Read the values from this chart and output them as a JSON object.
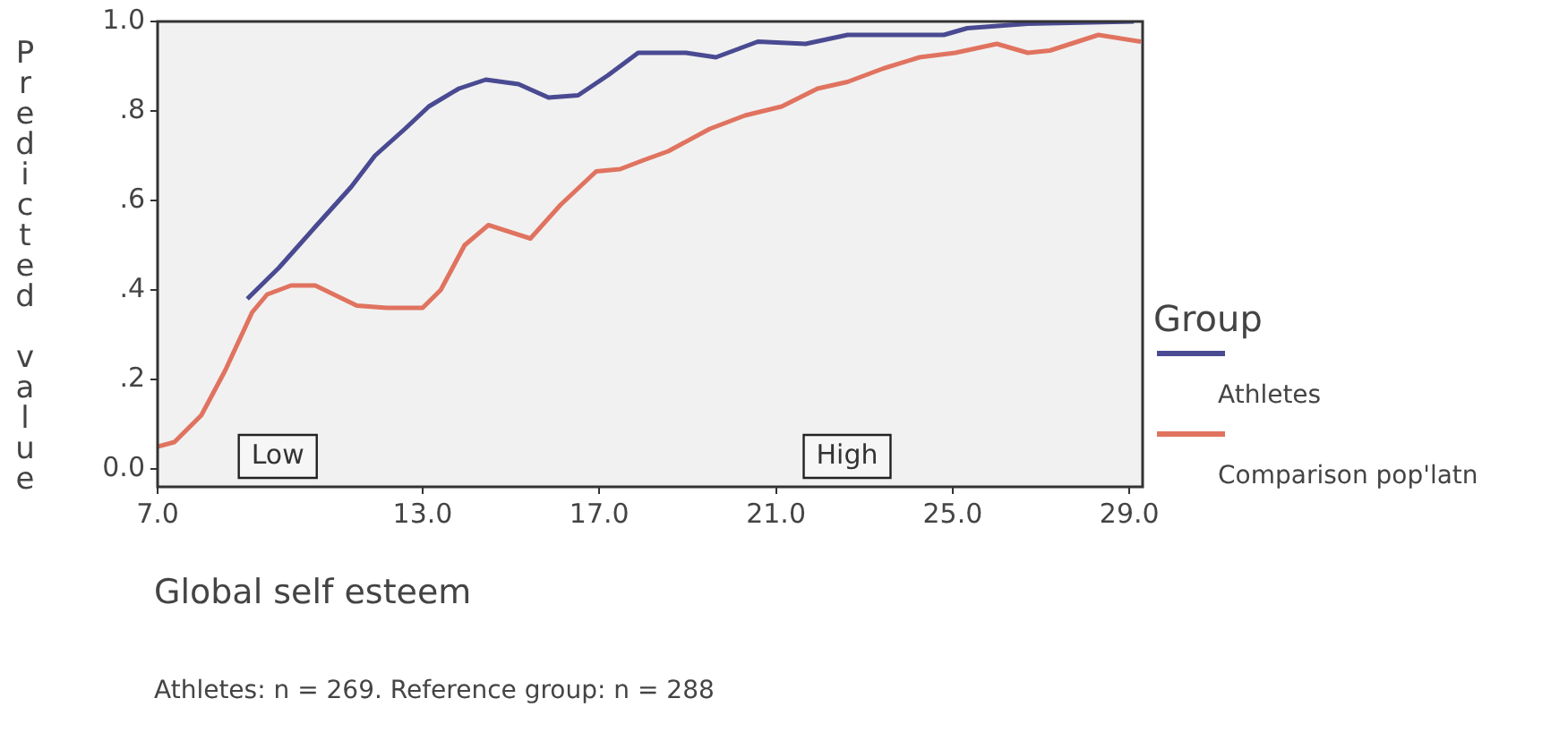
{
  "chart_data": {
    "type": "line",
    "xlabel": "Global self esteem",
    "ylabel": "Predicted value",
    "legend_title": "Group",
    "legend": "right",
    "grid": false,
    "marker": "none",
    "line_style": "solid",
    "xlim": [
      7,
      29.3
    ],
    "ylim": [
      -0.04,
      1.0
    ],
    "xticks": [
      {
        "value": 7,
        "label": "7.0"
      },
      {
        "value": 13,
        "label": "13.0"
      },
      {
        "value": 17,
        "label": "17.0"
      },
      {
        "value": 21,
        "label": "21.0"
      },
      {
        "value": 25,
        "label": "25.0"
      },
      {
        "value": 29,
        "label": "29.0"
      }
    ],
    "yticks": [
      {
        "value": 0,
        "label": "0.0"
      },
      {
        "value": 0.2,
        "label": ".2"
      },
      {
        "value": 0.4,
        "label": ".4"
      },
      {
        "value": 0.6,
        "label": ".6"
      },
      {
        "value": 0.8,
        "label": ".8"
      },
      {
        "value": 1.0,
        "label": "1.0"
      }
    ],
    "series": [
      {
        "name": "Athletes",
        "color": "#4a4a92",
        "x": [
          9.03,
          9.75,
          10.56,
          11.38,
          11.92,
          12.6,
          13.14,
          13.82,
          14.43,
          15.17,
          15.85,
          16.52,
          17.2,
          17.88,
          18.96,
          19.64,
          20.59,
          21.67,
          22.62,
          24.8,
          25.33,
          26.7,
          29.1
        ],
        "values": [
          0.38,
          0.45,
          0.54,
          0.63,
          0.7,
          0.76,
          0.81,
          0.85,
          0.87,
          0.86,
          0.83,
          0.835,
          0.88,
          0.93,
          0.93,
          0.92,
          0.955,
          0.95,
          0.97,
          0.97,
          0.985,
          0.995,
          1.0
        ]
      },
      {
        "name": "Comparison pop'latn",
        "color": "#e0735f",
        "x": [
          7.0,
          7.38,
          7.99,
          8.53,
          9.14,
          9.48,
          10.02,
          10.57,
          11.51,
          12.19,
          13.0,
          13.41,
          13.95,
          14.49,
          15.44,
          16.12,
          16.93,
          17.47,
          18.0,
          18.56,
          19.5,
          20.3,
          21.13,
          21.94,
          22.62,
          23.43,
          24.25,
          25.06,
          26.0,
          26.7,
          27.2,
          28.3,
          29.26
        ],
        "values": [
          0.05,
          0.06,
          0.12,
          0.22,
          0.35,
          0.39,
          0.41,
          0.41,
          0.365,
          0.36,
          0.36,
          0.4,
          0.5,
          0.545,
          0.515,
          0.59,
          0.665,
          0.67,
          0.69,
          0.71,
          0.76,
          0.79,
          0.81,
          0.85,
          0.865,
          0.895,
          0.92,
          0.93,
          0.95,
          0.93,
          0.935,
          0.97,
          0.955
        ]
      }
    ],
    "annotations": [
      "Low",
      "High",
      "Athletes: n = 269. Reference group: n = 288"
    ]
  }
}
